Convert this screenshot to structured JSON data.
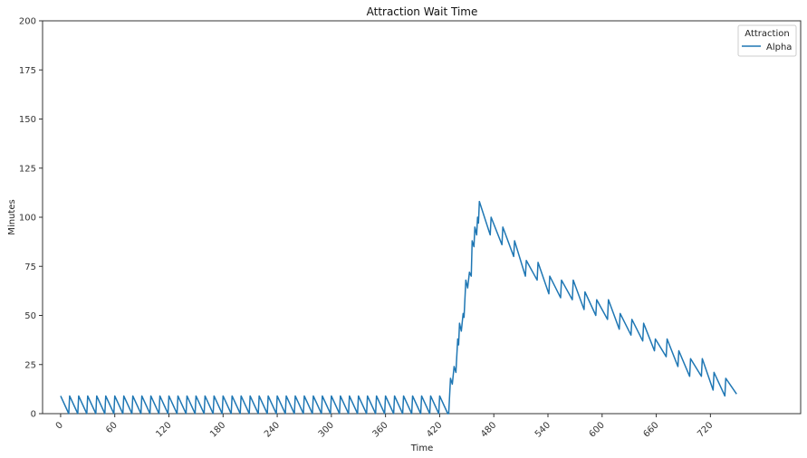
{
  "chart_data": {
    "type": "line",
    "title": "Attraction Wait Time",
    "xlabel": "Time",
    "ylabel": "Minutes",
    "xlim": [
      -20,
      820
    ],
    "ylim": [
      0,
      200
    ],
    "x_ticks": [
      0,
      60,
      120,
      180,
      240,
      300,
      360,
      420,
      480,
      540,
      600,
      660,
      720
    ],
    "y_ticks": [
      0,
      25,
      50,
      75,
      100,
      125,
      150,
      175,
      200
    ],
    "x_tick_rotation": 45,
    "grid": false,
    "legend": {
      "title": "Attraction",
      "placement": "top-right"
    },
    "color": "#1f77b4",
    "series": [
      {
        "name": "Alpha",
        "sawtooth": {
          "x_start": 0,
          "x_end": 430,
          "period": 10,
          "peak": 9,
          "trough": 0
        },
        "points": [
          [
            430,
            0
          ],
          [
            432,
            18
          ],
          [
            434,
            15
          ],
          [
            436,
            24
          ],
          [
            438,
            21
          ],
          [
            440,
            38
          ],
          [
            441,
            35
          ],
          [
            442,
            46
          ],
          [
            444,
            42
          ],
          [
            446,
            51
          ],
          [
            447,
            49
          ],
          [
            449,
            68
          ],
          [
            451,
            64
          ],
          [
            453,
            72
          ],
          [
            455,
            70
          ],
          [
            456,
            88
          ],
          [
            458,
            85
          ],
          [
            459,
            95
          ],
          [
            461,
            91
          ],
          [
            462,
            100
          ],
          [
            463,
            97
          ],
          [
            464,
            108
          ],
          [
            476,
            91
          ],
          [
            477,
            100
          ],
          [
            489,
            86
          ],
          [
            490,
            95
          ],
          [
            502,
            80
          ],
          [
            503,
            88
          ],
          [
            515,
            70
          ],
          [
            516,
            78
          ],
          [
            528,
            68
          ],
          [
            529,
            77
          ],
          [
            541,
            61
          ],
          [
            542,
            70
          ],
          [
            554,
            59
          ],
          [
            555,
            68
          ],
          [
            567,
            58
          ],
          [
            568,
            68
          ],
          [
            580,
            53
          ],
          [
            581,
            62
          ],
          [
            593,
            50
          ],
          [
            594,
            58
          ],
          [
            606,
            48
          ],
          [
            607,
            58
          ],
          [
            619,
            43
          ],
          [
            620,
            51
          ],
          [
            632,
            40
          ],
          [
            633,
            48
          ],
          [
            645,
            37
          ],
          [
            646,
            46
          ],
          [
            658,
            32
          ],
          [
            659,
            38
          ],
          [
            671,
            29
          ],
          [
            672,
            38
          ],
          [
            684,
            24
          ],
          [
            685,
            32
          ],
          [
            697,
            19
          ],
          [
            698,
            28
          ],
          [
            710,
            19
          ],
          [
            711,
            28
          ],
          [
            723,
            12
          ],
          [
            724,
            21
          ],
          [
            736,
            9
          ],
          [
            737,
            18
          ],
          [
            749,
            10
          ]
        ]
      }
    ]
  }
}
